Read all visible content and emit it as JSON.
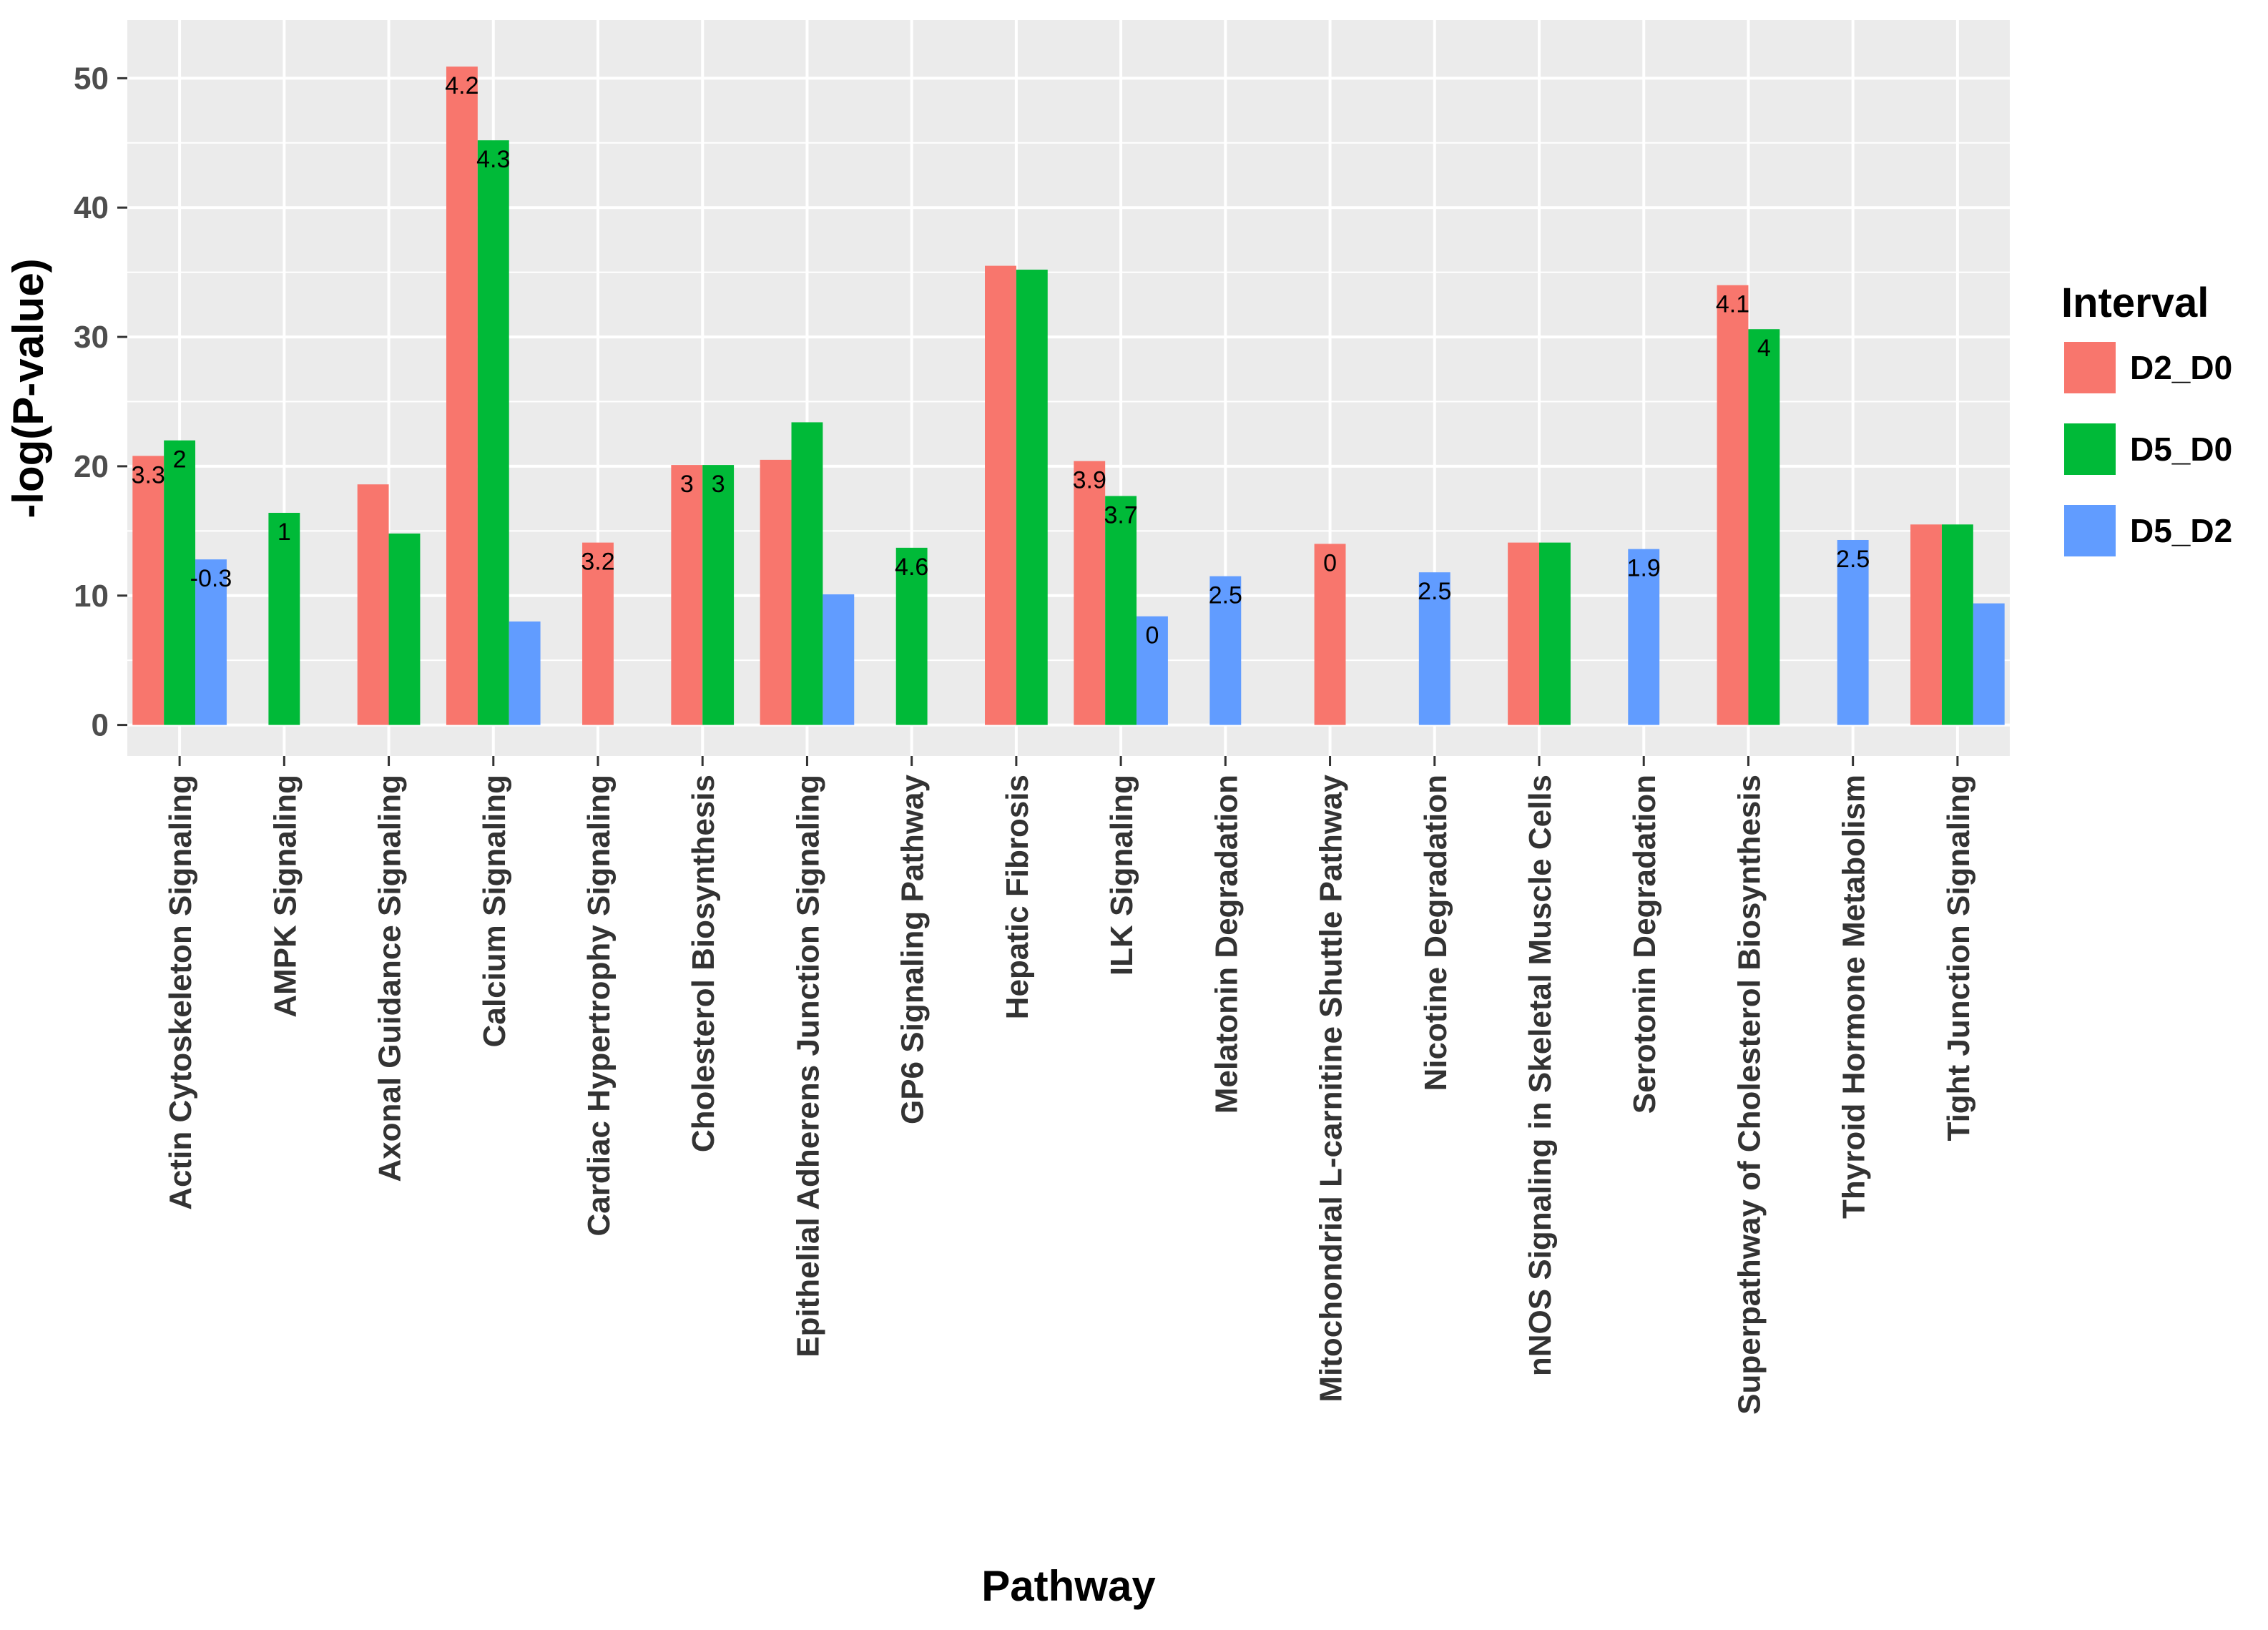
{
  "chart_data": {
    "type": "bar",
    "xlabel": "Pathway",
    "ylabel": "-log(P-value)",
    "ylim": [
      -2.4,
      54.5
    ],
    "yticks": [
      0,
      10,
      20,
      30,
      40,
      50
    ],
    "grid": true,
    "legend": {
      "title": "Interval",
      "position": "right"
    },
    "categories": [
      "Actin Cytoskeleton Signaling",
      "AMPK Signaling",
      "Axonal Guidance Signaling",
      "Calcium Signaling",
      "Cardiac Hypertrophy Signaling",
      "Cholesterol Biosynthesis",
      "Epithelial Adherens Junction Signaling",
      "GP6 Signaling Pathway",
      "Hepatic Fibrosis",
      "ILK Signaling",
      "Melatonin Degradation",
      "Mitochondrial L-carnitine Shuttle Pathway",
      "Nicotine Degradation",
      "nNOS Signaling in Skeletal Muscle Cells",
      "Serotonin Degradation",
      "Superpathway of Cholesterol Biosynthesis",
      "Thyroid Hormone Metabolism",
      "Tight Junction Signaling"
    ],
    "series": [
      {
        "name": "D2_D0",
        "color": "#F8766D",
        "values": [
          20.8,
          null,
          18.6,
          50.9,
          14.1,
          20.1,
          20.5,
          null,
          35.5,
          20.4,
          null,
          14.0,
          null,
          14.1,
          null,
          34.0,
          null,
          15.5
        ],
        "labels": [
          "3.3",
          null,
          null,
          "4.2",
          "3.2",
          "3",
          null,
          null,
          null,
          "3.9",
          null,
          "0",
          null,
          null,
          null,
          "4.1",
          null,
          null
        ]
      },
      {
        "name": "D5_D0",
        "color": "#00BA38",
        "values": [
          22.0,
          16.4,
          14.8,
          45.2,
          null,
          20.1,
          23.4,
          13.7,
          35.2,
          17.7,
          null,
          null,
          null,
          14.1,
          null,
          30.6,
          null,
          15.5
        ],
        "labels": [
          "2",
          "1",
          null,
          "4.3",
          null,
          "3",
          null,
          "4.6",
          null,
          "3.7",
          null,
          null,
          null,
          null,
          null,
          "4",
          null,
          null
        ]
      },
      {
        "name": "D5_D2",
        "color": "#619CFF",
        "values": [
          12.8,
          null,
          null,
          8.0,
          null,
          null,
          10.1,
          null,
          null,
          8.4,
          11.5,
          null,
          11.8,
          null,
          13.6,
          null,
          14.3,
          9.4
        ],
        "labels": [
          "-0.3",
          null,
          null,
          null,
          null,
          null,
          null,
          null,
          null,
          "0",
          "2.5",
          null,
          "2.5",
          null,
          "1.9",
          null,
          "2.5",
          null
        ]
      }
    ]
  }
}
